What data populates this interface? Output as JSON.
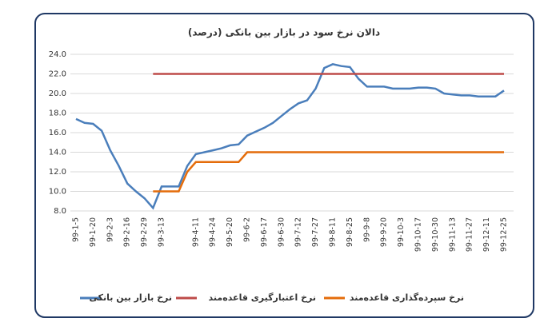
{
  "chart_data": {
    "type": "line",
    "title": "دالان نرخ سود در بازار بین بانکی (درصد)",
    "categories": [
      "99-1-5",
      null,
      "99-1-20",
      null,
      "99-2-3",
      null,
      "99-2-16",
      null,
      "99-2-29",
      null,
      "99-3-13",
      null,
      null,
      null,
      "99-4-11",
      null,
      "99-4-24",
      null,
      "99-5-20",
      null,
      "99-6-2",
      null,
      "99-6-17",
      null,
      "99-6-30",
      null,
      "99-7-12",
      null,
      "99-7-27",
      null,
      "99-8-11",
      null,
      "99-8-25",
      null,
      "99-9-8",
      null,
      "99-9-20",
      null,
      "99-10-3",
      null,
      "99-10-17",
      null,
      "99-10-30",
      null,
      "99-11-13",
      null,
      "99-11-27",
      null,
      "99-12-11",
      null,
      "99-12-25"
    ],
    "series": [
      {
        "name": "نرخ بازار بین بانکی",
        "color": "#4a7ebb",
        "values": [
          17.4,
          17.0,
          16.9,
          16.2,
          14.2,
          12.6,
          10.8,
          10.0,
          9.3,
          8.3,
          10.5,
          10.5,
          10.5,
          12.6,
          13.8,
          14.0,
          14.2,
          14.4,
          14.7,
          14.8,
          15.7,
          16.1,
          16.5,
          17.0,
          17.7,
          18.4,
          19.0,
          19.3,
          20.5,
          22.6,
          23.0,
          22.8,
          22.7,
          21.5,
          20.7,
          20.7,
          20.7,
          20.5,
          20.5,
          20.5,
          20.6,
          20.6,
          20.5,
          20.0,
          19.9,
          19.8,
          19.8,
          19.7,
          19.7,
          19.7,
          20.3
        ]
      },
      {
        "name": "نرخ اعتبارگیری قاعده‌مند",
        "color": "#be4b48",
        "values": [
          null,
          null,
          null,
          null,
          null,
          null,
          null,
          null,
          null,
          22,
          22,
          22,
          22,
          22,
          22,
          22,
          22,
          22,
          22,
          22,
          22,
          22,
          22,
          22,
          22,
          22,
          22,
          22,
          22,
          22,
          22,
          22,
          22,
          22,
          22,
          22,
          22,
          22,
          22,
          22,
          22,
          22,
          22,
          22,
          22,
          22,
          22,
          22,
          22,
          22,
          22
        ]
      },
      {
        "name": "نرخ سپرده‌گذاری قاعده‌مند",
        "color": "#e46c0a",
        "values": [
          null,
          null,
          null,
          null,
          null,
          null,
          null,
          null,
          null,
          10,
          10,
          10,
          10,
          12,
          13,
          13,
          13,
          13,
          13,
          13,
          14,
          14,
          14,
          14,
          14,
          14,
          14,
          14,
          14,
          14,
          14,
          14,
          14,
          14,
          14,
          14,
          14,
          14,
          14,
          14,
          14,
          14,
          14,
          14,
          14,
          14,
          14,
          14,
          14,
          14,
          14
        ]
      }
    ],
    "ylim": [
      8,
      24
    ],
    "yticks": [
      {
        "value": 8,
        "label": "8.0"
      },
      {
        "value": 10,
        "label": "10.0"
      },
      {
        "value": 12,
        "label": "12.0"
      },
      {
        "value": 14,
        "label": "14.0"
      },
      {
        "value": 16,
        "label": "16.0"
      },
      {
        "value": 18,
        "label": "18.0"
      },
      {
        "value": 20,
        "label": "20.0"
      },
      {
        "value": 22,
        "label": "22.0"
      },
      {
        "value": 24,
        "label": "24.0"
      }
    ],
    "grid": true
  }
}
